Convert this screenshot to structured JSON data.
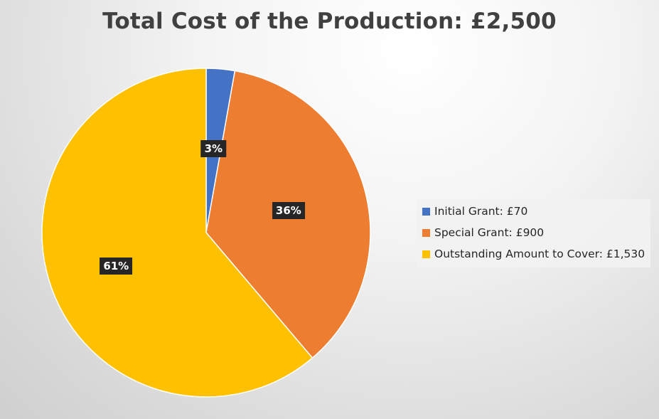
{
  "chart_data": {
    "type": "pie",
    "title": "Total Cost of the Production: £2,500",
    "legend_position": "right",
    "slices": [
      {
        "legend_label": "Initial Grant: £70",
        "value": 70,
        "percent_label": "3%",
        "color": "#4472c4"
      },
      {
        "legend_label": "Special Grant: £900",
        "value": 900,
        "percent_label": "36%",
        "color": "#ed7d31"
      },
      {
        "legend_label": "Outstanding Amount to Cover: £1,530",
        "value": 1530,
        "percent_label": "61%",
        "color": "#ffc000"
      }
    ]
  }
}
